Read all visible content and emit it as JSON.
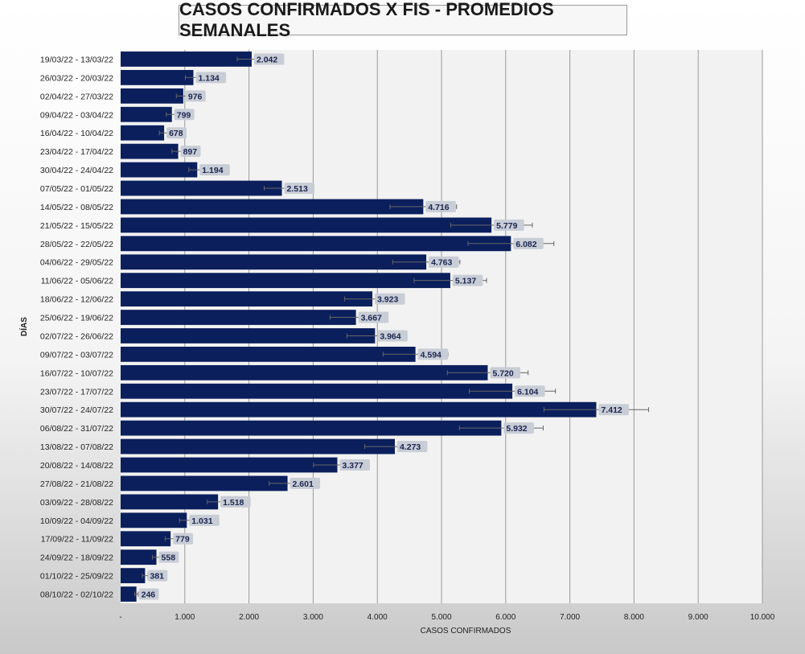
{
  "chart_data": {
    "type": "bar",
    "orientation": "horizontal",
    "title": "CASOS CONFIRMADOS X FIS - PROMEDIOS SEMANALES",
    "xlabel": "CASOS CONFIRMADOS",
    "ylabel": "DÍAS",
    "xlim": [
      0,
      10000
    ],
    "x_ticks": [
      "-",
      "1.000",
      "2.000",
      "3.000",
      "4.000",
      "5.000",
      "6.000",
      "7.000",
      "8.000",
      "9.000",
      "10.000"
    ],
    "grid": "vertical",
    "legend": "none",
    "error_bars": "approximately 11% of value",
    "colors": {
      "bar": "#0b1f5c",
      "label_bg": "#c8cdd6",
      "plot_bg": "#f2f2f2",
      "grid": "#9a9a9a"
    },
    "categories": [
      "19/03/22 - 13/03/22",
      "26/03/22 - 20/03/22",
      "02/04/22 - 27/03/22",
      "09/04/22 - 03/04/22",
      "16/04/22 - 10/04/22",
      "23/04/22 - 17/04/22",
      "30/04/22 - 24/04/22",
      "07/05/22 - 01/05/22",
      "14/05/22 - 08/05/22",
      "21/05/22 - 15/05/22",
      "28/05/22 - 22/05/22",
      "04/06/22 - 29/05/22",
      "11/06/22 - 05/06/22",
      "18/06/22 - 12/06/22",
      "25/06/22 - 19/06/22",
      "02/07/22 - 26/06/22",
      "09/07/22 - 03/07/22",
      "16/07/22 - 10/07/22",
      "23/07/22 - 17/07/22",
      "30/07/22 - 24/07/22",
      "06/08/22 - 31/07/22",
      "13/08/22 - 07/08/22",
      "20/08/22 - 14/08/22",
      "27/08/22 - 21/08/22",
      "03/09/22 - 28/08/22",
      "10/09/22 - 04/09/22",
      "17/09/22 - 11/09/22",
      "24/09/22 - 18/09/22",
      "01/10/22 - 25/09/22",
      "08/10/22 - 02/10/22"
    ],
    "values": [
      2042,
      1134,
      976,
      799,
      678,
      897,
      1194,
      2513,
      4716,
      5779,
      6082,
      4763,
      5137,
      3923,
      3667,
      3964,
      4594,
      5720,
      6104,
      7412,
      5932,
      4273,
      3377,
      2601,
      1518,
      1031,
      779,
      558,
      381,
      246
    ],
    "value_labels": [
      "2.042",
      "1.134",
      "976",
      "799",
      "678",
      "897",
      "1.194",
      "2.513",
      "4.716",
      "5.779",
      "6.082",
      "4.763",
      "5.137",
      "3.923",
      "3.667",
      "3.964",
      "4.594",
      "5.720",
      "6.104",
      "7.412",
      "5.932",
      "4.273",
      "3.377",
      "2.601",
      "1.518",
      "1.031",
      "779",
      "558",
      "381",
      "246"
    ]
  }
}
